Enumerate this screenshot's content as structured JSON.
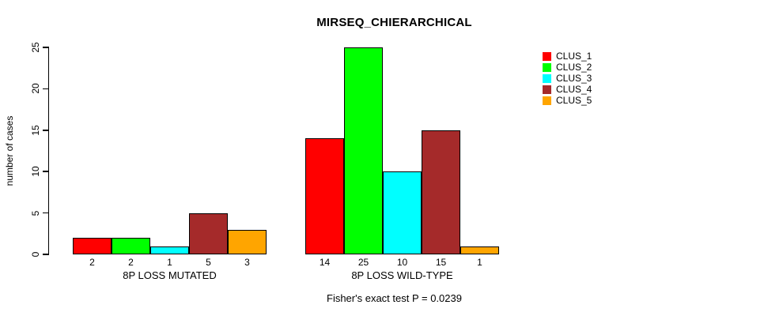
{
  "title": "MIRSEQ_CHIERARCHICAL",
  "ylabel": "number of cases",
  "footer": "Fisher's exact test P = 0.0239",
  "chart_data": {
    "type": "bar",
    "grouped": true,
    "title": "MIRSEQ_CHIERARCHICAL",
    "xlabel": "",
    "ylabel": "number of cases",
    "categories": [
      "8P LOSS MUTATED",
      "8P LOSS WILD-TYPE"
    ],
    "series": [
      {
        "name": "CLUS_1",
        "color": "#FF0000",
        "values": [
          2,
          14
        ]
      },
      {
        "name": "CLUS_2",
        "color": "#00FF00",
        "values": [
          2,
          25
        ]
      },
      {
        "name": "CLUS_3",
        "color": "#00FFFF",
        "values": [
          1,
          10
        ]
      },
      {
        "name": "CLUS_4",
        "color": "#A52A2A",
        "values": [
          5,
          15
        ]
      },
      {
        "name": "CLUS_5",
        "color": "#FFA500",
        "values": [
          3,
          1
        ]
      }
    ],
    "bar_value_labels": true,
    "yticks": [
      0,
      5,
      10,
      15,
      20,
      25
    ],
    "ylim": [
      0,
      25
    ],
    "grid": false,
    "legend_position": "top-right",
    "annotation": "Fisher's exact test P = 0.0239"
  }
}
